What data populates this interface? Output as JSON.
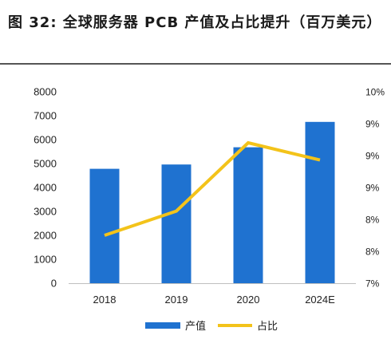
{
  "figure": {
    "title": "图 32: 全球服务器 PCB 产值及占比提升（百万美元）"
  },
  "chart_data": {
    "type": "bar+line",
    "categories": [
      "2018",
      "2019",
      "2020",
      "2024E"
    ],
    "series": [
      {
        "name": "产值",
        "type": "bar",
        "axis": "left",
        "color": "#1f72d0",
        "values": [
          4780,
          4960,
          5680,
          6740
        ]
      },
      {
        "name": "占比",
        "type": "line",
        "axis": "right",
        "color": "#f3c31a",
        "values": [
          0.0775,
          0.0813,
          0.092,
          0.0893
        ]
      }
    ],
    "y_left": {
      "ylim": [
        0,
        8000
      ],
      "ticks": [
        0,
        1000,
        2000,
        3000,
        4000,
        5000,
        6000,
        7000,
        8000
      ]
    },
    "y_right": {
      "ticks": [
        0.07,
        0.075,
        0.08,
        0.085,
        0.09,
        0.095,
        0.1
      ],
      "tick_labels": [
        "7%",
        "8%",
        "8%",
        "9%",
        "9%",
        "9%",
        "10%"
      ]
    },
    "legend": {
      "position": "bottom-center",
      "entries": [
        "产值",
        "占比"
      ]
    },
    "grid": false
  }
}
